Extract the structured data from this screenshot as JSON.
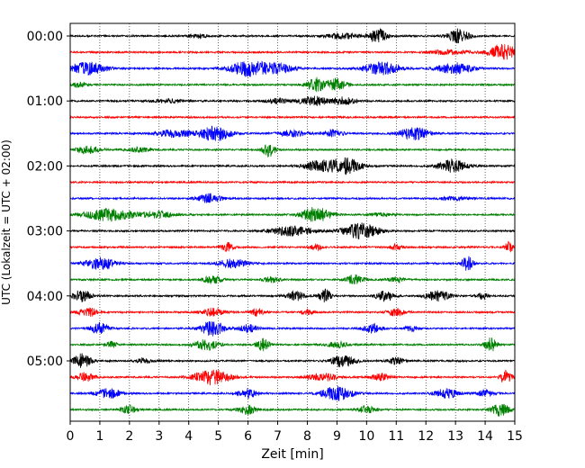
{
  "chart_data": {
    "type": "line",
    "title": "",
    "xlabel": "Zeit  [min]",
    "ylabel": "UTC (Lokalzeit = UTC + 02:00)",
    "xlim": [
      0,
      15
    ],
    "x_ticks": [
      "0",
      "1",
      "2",
      "3",
      "4",
      "5",
      "6",
      "7",
      "8",
      "9",
      "10",
      "11",
      "12",
      "13",
      "14",
      "15"
    ],
    "y_ticks": [
      "00:00",
      "01:00",
      "02:00",
      "03:00",
      "04:00",
      "05:00"
    ],
    "grid": {
      "vertical": "dotted",
      "horizontal": false
    },
    "colors": [
      "#000000",
      "#ff0000",
      "#0000ff",
      "#008000"
    ],
    "legend": "none",
    "minutes_per_line": 15,
    "traces": [
      {
        "label": "00:00",
        "color": "#000000",
        "bursts": [
          [
            4.3,
            0.3,
            0.25
          ],
          [
            9.2,
            0.6,
            0.35
          ],
          [
            10.4,
            0.3,
            0.9
          ],
          [
            13.1,
            0.35,
            0.9
          ]
        ]
      },
      {
        "label": "00:15",
        "color": "#ff0000",
        "bursts": [
          [
            12.8,
            0.6,
            0.3
          ],
          [
            14.6,
            0.5,
            1.0
          ]
        ]
      },
      {
        "label": "00:30",
        "color": "#0000ff",
        "bursts": [
          [
            0.6,
            0.6,
            0.8
          ],
          [
            6.0,
            0.6,
            1.0
          ],
          [
            7.0,
            0.6,
            0.6
          ],
          [
            10.5,
            0.6,
            0.8
          ],
          [
            13.0,
            0.6,
            0.7
          ]
        ]
      },
      {
        "label": "00:45",
        "color": "#008000",
        "bursts": [
          [
            0.3,
            0.2,
            0.4
          ],
          [
            8.3,
            0.3,
            0.9
          ],
          [
            9.0,
            0.3,
            0.8
          ]
        ]
      },
      {
        "label": "01:00",
        "color": "#000000",
        "bursts": [
          [
            3.3,
            0.6,
            0.2
          ],
          [
            7.0,
            0.4,
            0.3
          ],
          [
            8.2,
            0.5,
            0.6
          ],
          [
            9.2,
            0.4,
            0.5
          ]
        ]
      },
      {
        "label": "01:15",
        "color": "#ff0000",
        "bursts": []
      },
      {
        "label": "01:30",
        "color": "#0000ff",
        "bursts": [
          [
            3.5,
            0.6,
            0.5
          ],
          [
            4.9,
            0.5,
            1.0
          ],
          [
            7.5,
            0.5,
            0.4
          ],
          [
            8.9,
            0.3,
            0.5
          ],
          [
            11.6,
            0.5,
            0.8
          ]
        ]
      },
      {
        "label": "01:45",
        "color": "#008000",
        "bursts": [
          [
            0.6,
            0.4,
            0.5
          ],
          [
            2.3,
            0.4,
            0.3
          ],
          [
            6.7,
            0.2,
            1.0
          ]
        ]
      },
      {
        "label": "02:00",
        "color": "#000000",
        "bursts": [
          [
            8.4,
            0.5,
            0.7
          ],
          [
            9.3,
            0.5,
            1.0
          ],
          [
            12.9,
            0.5,
            0.8
          ]
        ]
      },
      {
        "label": "02:15",
        "color": "#ff0000",
        "bursts": []
      },
      {
        "label": "02:30",
        "color": "#0000ff",
        "bursts": [
          [
            4.7,
            0.4,
            0.6
          ],
          [
            13.0,
            0.6,
            0.2
          ]
        ]
      },
      {
        "label": "02:45",
        "color": "#008000",
        "bursts": [
          [
            1.3,
            0.8,
            0.8
          ],
          [
            3.0,
            0.6,
            0.4
          ],
          [
            8.3,
            0.5,
            1.0
          ],
          [
            10.5,
            0.4,
            0.2
          ]
        ]
      },
      {
        "label": "03:00",
        "color": "#000000",
        "bursts": [
          [
            7.5,
            0.7,
            0.6
          ],
          [
            9.8,
            0.6,
            1.0
          ]
        ]
      },
      {
        "label": "03:15",
        "color": "#ff0000",
        "bursts": [
          [
            5.3,
            0.2,
            0.6
          ],
          [
            8.3,
            0.2,
            0.4
          ],
          [
            11.0,
            0.2,
            0.4
          ],
          [
            14.8,
            0.15,
            0.7
          ]
        ]
      },
      {
        "label": "03:30",
        "color": "#0000ff",
        "bursts": [
          [
            1.0,
            0.5,
            0.8
          ],
          [
            5.5,
            0.5,
            0.6
          ],
          [
            13.4,
            0.2,
            0.9
          ]
        ]
      },
      {
        "label": "03:45",
        "color": "#008000",
        "bursts": [
          [
            4.8,
            0.3,
            0.5
          ],
          [
            6.8,
            0.3,
            0.4
          ],
          [
            9.6,
            0.3,
            0.6
          ],
          [
            11.0,
            0.3,
            0.3
          ]
        ]
      },
      {
        "label": "04:00",
        "color": "#000000",
        "bursts": [
          [
            0.4,
            0.3,
            0.8
          ],
          [
            7.6,
            0.3,
            0.6
          ],
          [
            8.6,
            0.2,
            0.9
          ],
          [
            10.6,
            0.3,
            0.7
          ],
          [
            12.4,
            0.4,
            0.7
          ],
          [
            13.9,
            0.2,
            0.4
          ]
        ]
      },
      {
        "label": "04:15",
        "color": "#ff0000",
        "bursts": [
          [
            0.6,
            0.3,
            0.6
          ],
          [
            4.8,
            0.4,
            0.5
          ],
          [
            6.3,
            0.2,
            0.5
          ],
          [
            8.0,
            0.2,
            0.4
          ],
          [
            11.0,
            0.3,
            0.5
          ]
        ]
      },
      {
        "label": "04:30",
        "color": "#0000ff",
        "bursts": [
          [
            1.0,
            0.3,
            0.7
          ],
          [
            4.8,
            0.4,
            1.0
          ],
          [
            6.0,
            0.3,
            0.5
          ],
          [
            10.2,
            0.3,
            0.6
          ],
          [
            11.5,
            0.2,
            0.4
          ]
        ]
      },
      {
        "label": "04:45",
        "color": "#008000",
        "bursts": [
          [
            1.4,
            0.2,
            0.4
          ],
          [
            4.6,
            0.4,
            0.7
          ],
          [
            6.5,
            0.2,
            0.8
          ],
          [
            9.0,
            0.3,
            0.4
          ],
          [
            14.2,
            0.2,
            0.9
          ]
        ]
      },
      {
        "label": "05:00",
        "color": "#000000",
        "bursts": [
          [
            0.4,
            0.3,
            0.9
          ],
          [
            2.5,
            0.3,
            0.3
          ],
          [
            9.2,
            0.4,
            0.8
          ],
          [
            11.0,
            0.3,
            0.4
          ]
        ]
      },
      {
        "label": "05:15",
        "color": "#ff0000",
        "bursts": [
          [
            0.5,
            0.3,
            0.6
          ],
          [
            4.8,
            0.6,
            1.0
          ],
          [
            8.5,
            0.5,
            0.5
          ],
          [
            10.5,
            0.3,
            0.5
          ],
          [
            14.7,
            0.2,
            0.8
          ]
        ]
      },
      {
        "label": "05:30",
        "color": "#0000ff",
        "bursts": [
          [
            1.3,
            0.4,
            0.6
          ],
          [
            6.0,
            0.3,
            0.6
          ],
          [
            9.0,
            0.5,
            0.9
          ],
          [
            12.7,
            0.4,
            0.6
          ],
          [
            14.0,
            0.3,
            0.4
          ]
        ]
      },
      {
        "label": "05:45",
        "color": "#008000",
        "bursts": [
          [
            2.0,
            0.3,
            0.5
          ],
          [
            6.0,
            0.3,
            0.6
          ],
          [
            10.0,
            0.3,
            0.5
          ],
          [
            14.5,
            0.3,
            0.8
          ]
        ]
      }
    ]
  }
}
